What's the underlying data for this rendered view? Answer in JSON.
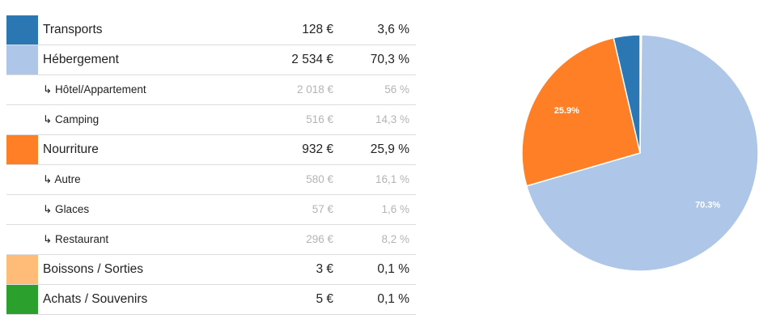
{
  "chart_data": [
    {
      "type": "table",
      "rows": [
        {
          "label": "Transports",
          "amount": "128 €",
          "percent": "3,6 %",
          "color": "#2a77b4",
          "sub": false
        },
        {
          "label": "Hébergement",
          "amount": "2 534 €",
          "percent": "70,3 %",
          "color": "#aec7e8",
          "sub": false
        },
        {
          "label": "↳ Hôtel/Appartement",
          "amount": "2 018 €",
          "percent": "56 %",
          "sub": true
        },
        {
          "label": "↳ Camping",
          "amount": "516 €",
          "percent": "14,3 %",
          "sub": true
        },
        {
          "label": "Nourriture",
          "amount": "932 €",
          "percent": "25,9 %",
          "color": "#ff7f27",
          "sub": false
        },
        {
          "label": "↳ Autre",
          "amount": "580 €",
          "percent": "16,1 %",
          "sub": true
        },
        {
          "label": "↳ Glaces",
          "amount": "57 €",
          "percent": "1,6 %",
          "sub": true
        },
        {
          "label": "↳ Restaurant",
          "amount": "296 €",
          "percent": "8,2 %",
          "sub": true
        },
        {
          "label": "Boissons / Sorties",
          "amount": "3 €",
          "percent": "0,1 %",
          "color": "#ffbb78",
          "sub": false
        },
        {
          "label": "Achats / Souvenirs",
          "amount": "5 €",
          "percent": "0,1 %",
          "color": "#2ca02c",
          "sub": false
        }
      ]
    },
    {
      "type": "pie",
      "slices": [
        {
          "category": "Transports",
          "value": 3.6,
          "color": "#2a77b4",
          "label": ""
        },
        {
          "category": "Hébergement",
          "value": 70.3,
          "color": "#aec7e8",
          "label": "70.3%"
        },
        {
          "category": "Nourriture",
          "value": 25.9,
          "color": "#ff7f27",
          "label": "25.9%"
        },
        {
          "category": "Boissons / Sorties",
          "value": 0.1,
          "color": "#ffbb78",
          "label": ""
        },
        {
          "category": "Achats / Souvenirs",
          "value": 0.1,
          "color": "#2ca02c",
          "label": ""
        }
      ],
      "start": "top",
      "direction": "clockwise",
      "slice_order": [
        "Boissons / Sorties",
        "Achats / Souvenirs",
        "Hébergement",
        "Nourriture",
        "Transports"
      ]
    }
  ]
}
